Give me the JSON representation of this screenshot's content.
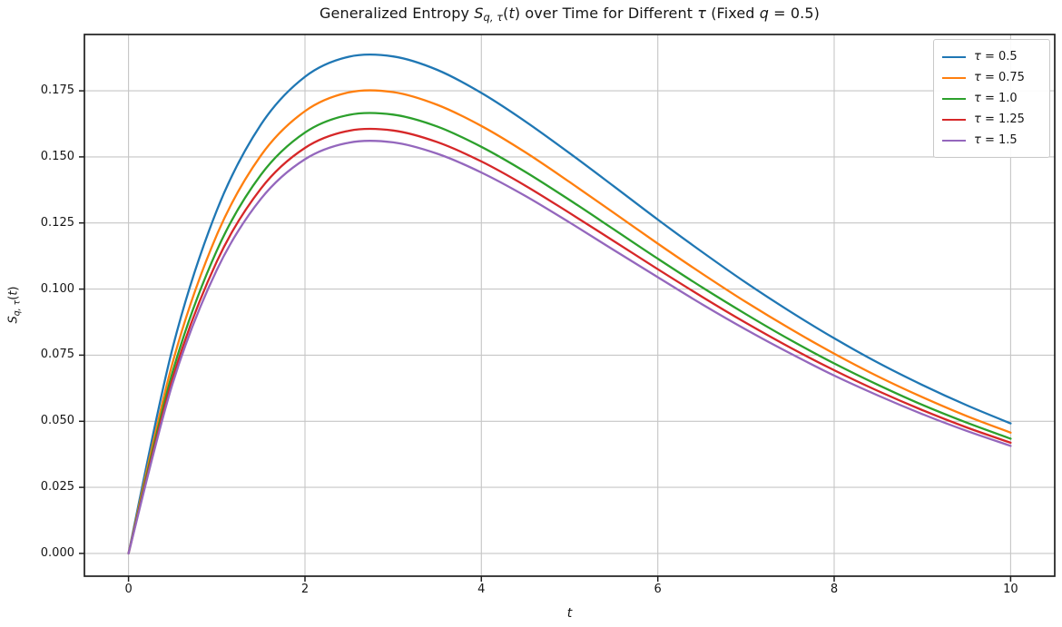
{
  "figure": {
    "background": "#ffffff",
    "text_color": "#151515",
    "title": {
      "text": "Generalized Entropy S_{q,τ}(t) over Time for Different τ (Fixed q = 0.5)",
      "segments": [
        {
          "t": "Generalized Entropy ",
          "s": "n"
        },
        {
          "t": "S",
          "s": "i"
        },
        {
          "t": "q, τ",
          "s": "sub"
        },
        {
          "t": "(",
          "s": "n"
        },
        {
          "t": "t",
          "s": "i"
        },
        {
          "t": ") over Time for Different ",
          "s": "n"
        },
        {
          "t": "τ",
          "s": "i"
        },
        {
          "t": " (Fixed ",
          "s": "n"
        },
        {
          "t": "q",
          "s": "i"
        },
        {
          "t": " = 0.5)",
          "s": "n"
        }
      ]
    },
    "x_axis_label": {
      "text": "t",
      "segments": [
        {
          "t": "t",
          "s": "i"
        }
      ]
    },
    "y_axis_label": {
      "text": "S_{q,τ}(t)",
      "segments": [
        {
          "t": "S",
          "s": "i"
        },
        {
          "t": "q, τ",
          "s": "sub"
        },
        {
          "t": "(",
          "s": "n"
        },
        {
          "t": "t",
          "s": "i"
        },
        {
          "t": ")",
          "s": "n"
        }
      ]
    },
    "legend": {
      "position": "upper right",
      "entries": [
        {
          "segments": [
            {
              "t": "τ",
              "s": "i"
            },
            {
              "t": " = 0.5",
              "s": "n"
            }
          ]
        },
        {
          "segments": [
            {
              "t": "τ",
              "s": "i"
            },
            {
              "t": " = 0.75",
              "s": "n"
            }
          ]
        },
        {
          "segments": [
            {
              "t": "τ",
              "s": "i"
            },
            {
              "t": " = 1.0",
              "s": "n"
            }
          ]
        },
        {
          "segments": [
            {
              "t": "τ",
              "s": "i"
            },
            {
              "t": " = 1.25",
              "s": "n"
            }
          ]
        },
        {
          "segments": [
            {
              "t": "τ",
              "s": "i"
            },
            {
              "t": " = 1.5",
              "s": "n"
            }
          ]
        }
      ]
    },
    "grid_color": "#c6c6c6",
    "spine_color": "#1f1f1f",
    "tick_color": "#1f1f1f"
  },
  "chart_data": {
    "type": "line",
    "title": "Generalized Entropy S_{q,τ}(t) over Time for Different τ (Fixed q = 0.5)",
    "xlabel": "t",
    "ylabel": "S_{q,τ}(t)",
    "grid": true,
    "legend_position": "upper right",
    "xlim": [
      -0.5,
      10.5
    ],
    "ylim": [
      -0.0086,
      0.1963
    ],
    "x_ticks": [
      0,
      2,
      4,
      6,
      8,
      10
    ],
    "x_tick_labels": [
      "0",
      "2",
      "4",
      "6",
      "8",
      "10"
    ],
    "y_ticks": [
      0.0,
      0.025,
      0.05,
      0.075,
      0.1,
      0.125,
      0.15,
      0.175
    ],
    "y_tick_labels": [
      "0.000",
      "0.025",
      "0.050",
      "0.075",
      "0.100",
      "0.125",
      "0.150",
      "0.175"
    ],
    "x": [
      0,
      0.5,
      1,
      1.5,
      2,
      2.5,
      3,
      3.5,
      4,
      4.5,
      5,
      5.5,
      6,
      6.5,
      7,
      7.5,
      8,
      8.5,
      9,
      9.5,
      10
    ],
    "series": [
      {
        "name": "τ = 0.5",
        "color": "#1f77b4",
        "values": [
          0,
          0.0778,
          0.1297,
          0.1622,
          0.1803,
          0.1879,
          0.188,
          0.1829,
          0.1742,
          0.1634,
          0.1514,
          0.1389,
          0.1263,
          0.1141,
          0.1024,
          0.0915,
          0.0814,
          0.0721,
          0.0637,
          0.0561,
          0.0492
        ]
      },
      {
        "name": "τ = 0.75",
        "color": "#ff7f0e",
        "values": [
          0,
          0.0722,
          0.1204,
          0.1505,
          0.1673,
          0.1744,
          0.1745,
          0.1697,
          0.1617,
          0.1517,
          0.1405,
          0.1289,
          0.1172,
          0.1059,
          0.0951,
          0.085,
          0.0756,
          0.0669,
          0.0591,
          0.052,
          0.0457
        ]
      },
      {
        "name": "τ = 1.0",
        "color": "#2ca02c",
        "values": [
          0,
          0.0687,
          0.1145,
          0.1432,
          0.1592,
          0.1659,
          0.166,
          0.1615,
          0.1538,
          0.1443,
          0.1337,
          0.1226,
          0.1115,
          0.1007,
          0.0905,
          0.0808,
          0.0719,
          0.0637,
          0.0562,
          0.0495,
          0.0434
        ]
      },
      {
        "name": "τ = 1.25",
        "color": "#d62728",
        "values": [
          0,
          0.0662,
          0.1104,
          0.138,
          0.1534,
          0.1599,
          0.16,
          0.1556,
          0.1483,
          0.1391,
          0.1288,
          0.1182,
          0.1075,
          0.0971,
          0.0872,
          0.0779,
          0.0693,
          0.0614,
          0.0542,
          0.0477,
          0.0419
        ]
      },
      {
        "name": "τ = 1.5",
        "color": "#9467bd",
        "values": [
          0,
          0.0643,
          0.1072,
          0.1341,
          0.1491,
          0.1554,
          0.1555,
          0.1512,
          0.1441,
          0.1352,
          0.1252,
          0.1148,
          0.1045,
          0.0943,
          0.0847,
          0.0757,
          0.0673,
          0.0597,
          0.0527,
          0.0464,
          0.0407
        ]
      }
    ]
  }
}
